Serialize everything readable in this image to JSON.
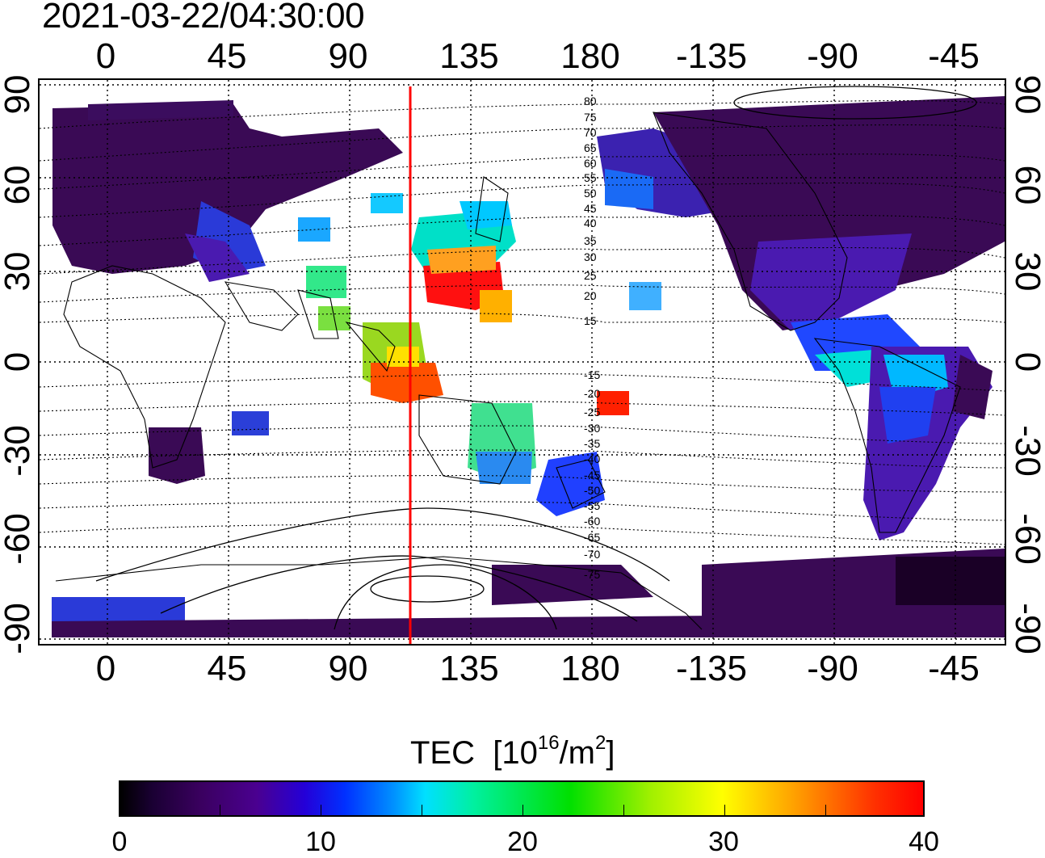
{
  "timestamp": "2021-03-22/04:30:00",
  "lon_ticks_top": [
    "0",
    "45",
    "90",
    "135",
    "180",
    "-135",
    "-90",
    "-45"
  ],
  "lon_ticks_bottom": [
    "0",
    "45",
    "90",
    "135",
    "180",
    "-135",
    "-90",
    "-45"
  ],
  "lat_ticks_left": [
    "90",
    "60",
    "30",
    "0",
    "-30",
    "-60",
    "-90"
  ],
  "lat_ticks_right": [
    "90",
    "60",
    "30",
    "0",
    "-30",
    "-60",
    "-90"
  ],
  "contour_labels": [
    "80",
    "75",
    "70",
    "65",
    "60",
    "55",
    "50",
    "45",
    "40",
    "35",
    "30",
    "25",
    "20",
    "15",
    "-15",
    "-20",
    "-25",
    "-30",
    "-35",
    "-40",
    "-45",
    "-50",
    "-55",
    "-60",
    "-65",
    "-70",
    "-75"
  ],
  "marker_line_longitude": 113,
  "colorbar": {
    "title": "TEC",
    "unit_prefix": "[10",
    "unit_exp": "16",
    "unit_mid": "/m",
    "unit_exp2": "2",
    "unit_suffix": "]",
    "ticks": [
      "0",
      "10",
      "20",
      "30",
      "40"
    ],
    "range": [
      0,
      40
    ]
  },
  "colors": {
    "marker_line": "#ff0000",
    "low": "#3a0a55",
    "high": "#ff0000"
  }
}
